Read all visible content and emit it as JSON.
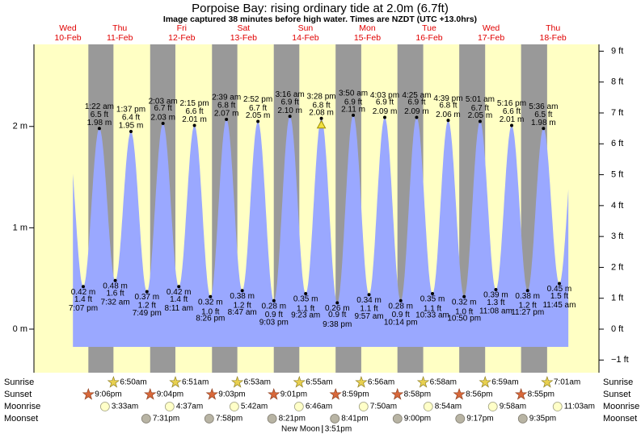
{
  "chart_data": {
    "type": "tide",
    "title": "Porpoise Bay: rising  ordinary tide at 2.0m (6.7ft)",
    "subtitle": "Image captured 38 minutes before high water. Times are NZDT (UTC +13.0hrs)",
    "days": [
      {
        "weekday": "Wed",
        "date": "10-Feb"
      },
      {
        "weekday": "Thu",
        "date": "11-Feb"
      },
      {
        "weekday": "Fri",
        "date": "12-Feb"
      },
      {
        "weekday": "Sat",
        "date": "13-Feb"
      },
      {
        "weekday": "Sun",
        "date": "14-Feb"
      },
      {
        "weekday": "Mon",
        "date": "15-Feb"
      },
      {
        "weekday": "Tue",
        "date": "16-Feb"
      },
      {
        "weekday": "Wed",
        "date": "17-Feb"
      },
      {
        "weekday": "Thu",
        "date": "18-Feb"
      }
    ],
    "ylim": [
      -0.43,
      2.81
    ],
    "yticks": [
      {
        "value": 0,
        "label": "0 m"
      },
      {
        "value": 1,
        "label": "1 m"
      },
      {
        "value": 2,
        "label": "2 m"
      }
    ],
    "y2lim": [
      -1.41,
      9.22
    ],
    "y2ticks": [
      {
        "value": -1,
        "label": "−1 ft"
      },
      {
        "value": 0,
        "label": "0 ft"
      },
      {
        "value": 1,
        "label": "1 ft"
      },
      {
        "value": 2,
        "label": "2 ft"
      },
      {
        "value": 3,
        "label": "3 ft"
      },
      {
        "value": 4,
        "label": "4 ft"
      },
      {
        "value": 5,
        "label": "5 ft"
      },
      {
        "value": 6,
        "label": "6 ft"
      },
      {
        "value": 7,
        "label": "7 ft"
      },
      {
        "value": 8,
        "label": "8 ft"
      },
      {
        "value": 9,
        "label": "9 ft"
      }
    ],
    "extreme_days": [
      0,
      1,
      1,
      1,
      1,
      2,
      2,
      2,
      2,
      3,
      3,
      3,
      3,
      4,
      4,
      4,
      4,
      5,
      5,
      5,
      5,
      6,
      6,
      6,
      6,
      7,
      7,
      7,
      7,
      8,
      8
    ],
    "extreme_times": [
      "7:07 pm",
      "1:22 am",
      "7:32 am",
      "1:37 pm",
      "7:49 pm",
      "2:03 am",
      "8:11 am",
      "2:15 pm",
      "8:26 pm",
      "2:39 am",
      "8:47 am",
      "2:52 pm",
      "9:03 pm",
      "3:16 am",
      "9:23 am",
      "3:28 pm",
      "9:38 pm",
      "3:50 am",
      "9:57 am",
      "4:03 pm",
      "10:14 pm",
      "4:25 am",
      "10:33 am",
      "4:39 pm",
      "10:50 pm",
      "5:01 am",
      "11:08 am",
      "5:16 pm",
      "11:27 pm",
      "5:36 am",
      "11:45 am"
    ],
    "values": [
      0.42,
      1.98,
      0.48,
      1.95,
      0.37,
      2.03,
      0.42,
      2.01,
      0.32,
      2.07,
      0.38,
      2.05,
      0.28,
      2.1,
      0.35,
      2.08,
      0.26,
      2.11,
      0.34,
      2.09,
      0.28,
      2.09,
      0.35,
      2.06,
      0.32,
      2.05,
      0.39,
      2.01,
      0.38,
      1.98,
      0.45
    ],
    "value_labels": [
      "0.42 m",
      "1.98 m",
      "0.48 m",
      "1.95 m",
      "0.37 m",
      "2.03 m",
      "0.42 m",
      "2.01 m",
      "0.32 m",
      "2.07 m",
      "0.38 m",
      "2.05 m",
      "0.28 m",
      "2.10 m",
      "0.35 m",
      "2.08 m",
      "0.26 m",
      "2.11 m",
      "0.34 m",
      "2.09 m",
      "0.28 m",
      "2.09 m",
      "0.35 m",
      "2.06 m",
      "0.32 m",
      "2.05 m",
      "0.39 m",
      "2.01 m",
      "0.38 m",
      "1.98 m",
      "0.45 m"
    ],
    "feet": [
      1.4,
      6.5,
      1.6,
      6.4,
      1.2,
      6.7,
      1.4,
      6.6,
      1.0,
      6.8,
      1.2,
      6.7,
      0.9,
      6.9,
      1.1,
      6.8,
      0.9,
      6.9,
      1.1,
      6.9,
      0.9,
      6.9,
      1.1,
      6.8,
      1.0,
      6.7,
      1.3,
      6.6,
      1.2,
      6.5,
      1.5
    ],
    "feet_labels": [
      "1.4 ft",
      "6.5 ft",
      "1.6 ft",
      "6.4 ft",
      "1.2 ft",
      "6.7 ft",
      "1.4 ft",
      "6.6 ft",
      "1.0 ft",
      "6.8 ft",
      "1.2 ft",
      "6.7 ft",
      "0.9 ft",
      "6.9 ft",
      "1.1 ft",
      "6.8 ft",
      "0.9 ft",
      "6.9 ft",
      "1.1 ft",
      "6.9 ft",
      "0.9 ft",
      "6.9 ft",
      "1.1 ft",
      "6.8 ft",
      "1.0 ft",
      "6.7 ft",
      "1.3 ft",
      "6.6 ft",
      "1.2 ft",
      "6.5 ft",
      "1.5 ft"
    ],
    "now_marker_extreme": 15,
    "color": "#9aa8ff",
    "rows": [
      {
        "label": "Sunrise",
        "days": [
          1,
          2,
          3,
          4,
          5,
          6,
          7,
          8
        ],
        "times": [
          "6:50am",
          "6:51am",
          "6:53am",
          "6:55am",
          "6:56am",
          "6:58am",
          "6:59am",
          "7:01am"
        ]
      },
      {
        "label": "Sunset",
        "days": [
          0,
          1,
          2,
          3,
          4,
          5,
          6,
          7
        ],
        "times": [
          "9:06pm",
          "9:04pm",
          "9:03pm",
          "9:01pm",
          "8:59pm",
          "8:58pm",
          "8:56pm",
          "8:55pm"
        ]
      },
      {
        "label": "Moonrise",
        "days": [
          1,
          2,
          3,
          4,
          5,
          6,
          7,
          8
        ],
        "times": [
          "3:33am",
          "4:37am",
          "5:42am",
          "6:46am",
          "7:50am",
          "8:54am",
          "9:58am",
          "11:03am"
        ]
      },
      {
        "label": "Moonset",
        "days": [
          1,
          2,
          3,
          4,
          5,
          6,
          7
        ],
        "times": [
          "7:31pm",
          "7:58pm",
          "8:21pm",
          "8:41pm",
          "9:00pm",
          "9:17pm",
          "9:35pm"
        ]
      }
    ],
    "moon_phase": {
      "name": "New Moon",
      "day": 4,
      "time": "3:51pm"
    }
  }
}
